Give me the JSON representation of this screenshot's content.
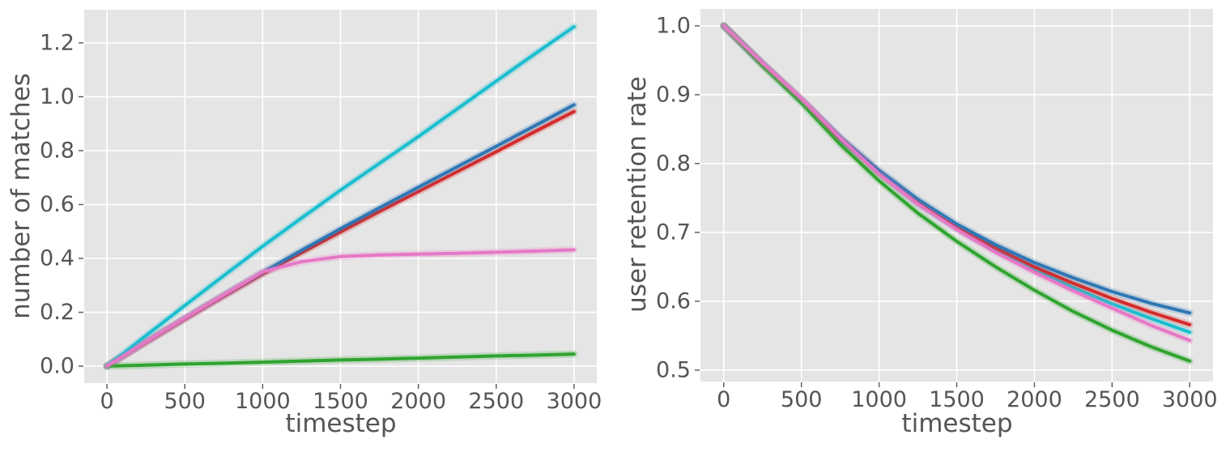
{
  "style": {
    "plot_background": "#e5e5e5",
    "grid_color": "#ffffff",
    "tick_color": "#555555",
    "label_color": "#555555"
  },
  "chart_data": [
    {
      "type": "line",
      "title": "",
      "xlabel": "timestep",
      "ylabel": "number of matches",
      "grid": true,
      "legend": "none",
      "xlim": [
        -146,
        3146
      ],
      "ylim": [
        -0.063,
        1.323
      ],
      "x_ticks": {
        "values": [
          0,
          500,
          1000,
          1500,
          2000,
          2500,
          3000
        ],
        "labels": [
          "0",
          "500",
          "1000",
          "1500",
          "2000",
          "2500",
          "3000"
        ]
      },
      "y_ticks": {
        "values": [
          0.0,
          0.2,
          0.4,
          0.6,
          0.8,
          1.0,
          1.2
        ],
        "labels": [
          "0.0",
          "0.2",
          "0.4",
          "0.6",
          "0.8",
          "1.0",
          "1.2"
        ]
      },
      "x": [
        0,
        250,
        500,
        750,
        1000,
        1250,
        1500,
        1750,
        2000,
        2250,
        2500,
        2750,
        3000
      ],
      "series": [
        {
          "name": "red-line",
          "color": "#d62b2b",
          "values": [
            0.0,
            0.088,
            0.175,
            0.26,
            0.342,
            0.421,
            0.498,
            0.574,
            0.648,
            0.722,
            0.796,
            0.871,
            0.945
          ]
        },
        {
          "name": "blue-line",
          "color": "#2e77b4",
          "values": [
            0.0,
            0.09,
            0.178,
            0.264,
            0.348,
            0.43,
            0.51,
            0.588,
            0.664,
            0.74,
            0.816,
            0.893,
            0.97
          ]
        },
        {
          "name": "cyan-line",
          "color": "#1abecf",
          "values": [
            0.0,
            0.113,
            0.225,
            0.336,
            0.445,
            0.55,
            0.653,
            0.753,
            0.852,
            0.955,
            1.058,
            1.16,
            1.26
          ]
        },
        {
          "name": "green-line",
          "color": "#2fa42f",
          "values": [
            0.0,
            0.004,
            0.008,
            0.011,
            0.015,
            0.019,
            0.023,
            0.026,
            0.03,
            0.034,
            0.038,
            0.041,
            0.045
          ]
        },
        {
          "name": "pink-line",
          "color": "#e678c6",
          "values": [
            0.0,
            0.09,
            0.178,
            0.264,
            0.35,
            0.388,
            0.407,
            0.413,
            0.416,
            0.419,
            0.423,
            0.427,
            0.432
          ]
        }
      ]
    },
    {
      "type": "line",
      "title": "",
      "xlabel": "timestep",
      "ylabel": "user retention rate",
      "grid": true,
      "legend": "none",
      "xlim": [
        -150,
        3150
      ],
      "ylim": [
        0.4834,
        1.0246
      ],
      "x_ticks": {
        "values": [
          0,
          500,
          1000,
          1500,
          2000,
          2500,
          3000
        ],
        "labels": [
          "0",
          "500",
          "1000",
          "1500",
          "2000",
          "2500",
          "3000"
        ]
      },
      "y_ticks": {
        "values": [
          0.5,
          0.6,
          0.7,
          0.8,
          0.9,
          1.0
        ],
        "labels": [
          "0.5",
          "0.6",
          "0.7",
          "0.8",
          "0.9",
          "1.0"
        ]
      },
      "x": [
        0,
        250,
        500,
        750,
        1000,
        1250,
        1500,
        1750,
        2000,
        2250,
        2500,
        2750,
        3000
      ],
      "series": [
        {
          "name": "cyan-line",
          "color": "#1abecf",
          "values": [
            1.0,
            0.944,
            0.891,
            0.835,
            0.786,
            0.742,
            0.706,
            0.674,
            0.646,
            0.62,
            0.596,
            0.575,
            0.555
          ]
        },
        {
          "name": "red-line",
          "color": "#d62b2b",
          "values": [
            1.0,
            0.945,
            0.892,
            0.836,
            0.787,
            0.744,
            0.708,
            0.677,
            0.65,
            0.626,
            0.604,
            0.584,
            0.566
          ]
        },
        {
          "name": "blue-line",
          "color": "#2e77b4",
          "values": [
            1.0,
            0.945,
            0.893,
            0.838,
            0.79,
            0.748,
            0.712,
            0.682,
            0.656,
            0.634,
            0.614,
            0.597,
            0.583
          ]
        },
        {
          "name": "green-line",
          "color": "#2fa42f",
          "values": [
            1.0,
            0.942,
            0.888,
            0.828,
            0.775,
            0.728,
            0.687,
            0.65,
            0.616,
            0.585,
            0.558,
            0.534,
            0.513
          ]
        },
        {
          "name": "pink-line",
          "color": "#e678c6",
          "values": [
            1.0,
            0.946,
            0.894,
            0.837,
            0.785,
            0.741,
            0.704,
            0.671,
            0.642,
            0.615,
            0.59,
            0.565,
            0.543
          ]
        }
      ]
    }
  ]
}
